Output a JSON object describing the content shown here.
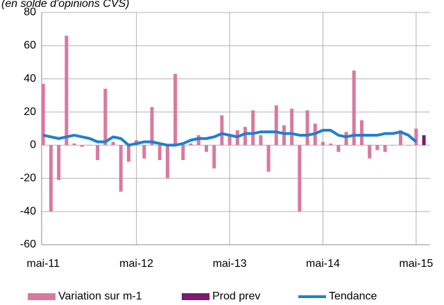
{
  "chart_data": {
    "type": "bar-line",
    "subtitle": "(en solde d'opinions CVS)",
    "categories": [
      "mai-11",
      null,
      null,
      null,
      null,
      null,
      null,
      null,
      null,
      null,
      null,
      null,
      "mai-12",
      null,
      null,
      null,
      null,
      null,
      null,
      null,
      null,
      null,
      null,
      null,
      "mai-13",
      null,
      null,
      null,
      null,
      null,
      null,
      null,
      null,
      null,
      null,
      null,
      "mai-14",
      null,
      null,
      null,
      null,
      null,
      null,
      null,
      null,
      null,
      null,
      null,
      "mai-15",
      null
    ],
    "series": [
      {
        "name": "Variation sur m-1",
        "type": "bar",
        "color": "#d9799e",
        "values": [
          37,
          -40,
          -21,
          66,
          1,
          -1,
          0,
          -9,
          34,
          2,
          -28,
          -10,
          3,
          -8,
          23,
          -9,
          -20,
          43,
          -9,
          1,
          6,
          -4,
          -14,
          18,
          6,
          9,
          11,
          21,
          6,
          -16,
          24,
          12,
          22,
          -40,
          21,
          13,
          2,
          1,
          -4,
          8,
          45,
          15,
          -8,
          -3,
          -4,
          0,
          9,
          0,
          10,
          null
        ]
      },
      {
        "name": "Prod prev",
        "type": "bar",
        "color": "#7b1a6e",
        "values": [
          null,
          null,
          null,
          null,
          null,
          null,
          null,
          null,
          null,
          null,
          null,
          null,
          null,
          null,
          null,
          null,
          null,
          null,
          null,
          null,
          null,
          null,
          null,
          null,
          null,
          null,
          null,
          null,
          null,
          null,
          null,
          null,
          null,
          null,
          null,
          null,
          null,
          null,
          null,
          null,
          null,
          null,
          null,
          null,
          null,
          null,
          null,
          null,
          null,
          6
        ]
      },
      {
        "name": "Tendance",
        "type": "line",
        "color": "#1f7fd0",
        "values": [
          6,
          5,
          4,
          5,
          6,
          5,
          4,
          2,
          2,
          5,
          4,
          0,
          1,
          2,
          2,
          1,
          0,
          0,
          1,
          3,
          4,
          4,
          5,
          7,
          6,
          5,
          7,
          7,
          8,
          8,
          8,
          7,
          7,
          6,
          6,
          7,
          9,
          9,
          6,
          5,
          6,
          6,
          6,
          6,
          7,
          7,
          8,
          6,
          2,
          null
        ]
      }
    ],
    "ylim": [
      -60,
      80
    ],
    "yticks": [
      -60,
      -40,
      -20,
      0,
      20,
      40,
      60,
      80
    ],
    "grid": true,
    "legend": "bottom"
  }
}
